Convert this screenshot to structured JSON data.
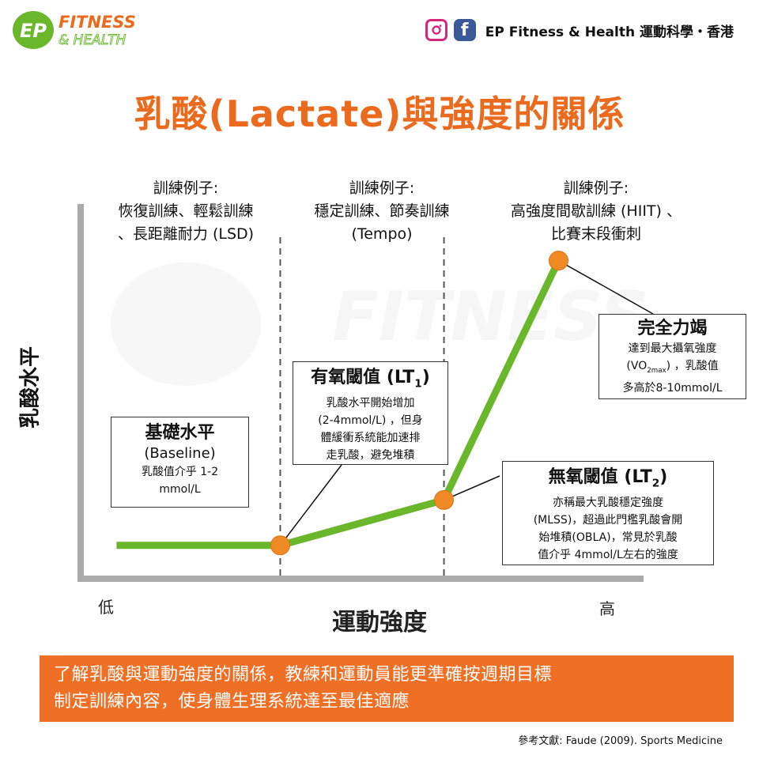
{
  "brand": {
    "logo_mark": "EP",
    "logo_line1": "FITNESS",
    "logo_line2": "& HEALTH",
    "instagram_icon": "instagram-icon",
    "facebook_icon": "facebook-icon",
    "social_text": "EP Fitness & Health 運動科學・香港",
    "accent_color": "#ea6a1e",
    "green": "#6ab72c"
  },
  "title": "乳酸(Lactate)與強度的關係",
  "zones": [
    {
      "line1": "訓練例子:",
      "line2": "恢復訓練、輕鬆訓練",
      "line3": "、長距離耐力 (LSD)"
    },
    {
      "line1": "訓練例子:",
      "line2": "穩定訓練、節奏訓練",
      "line3": "(Tempo)"
    },
    {
      "line1": "訓練例子:",
      "line2": "高強度間歇訓練 (HIIT) 、",
      "line3": "比賽末段衝刺"
    }
  ],
  "boxes": {
    "baseline": {
      "title": "基礎水平",
      "subtitle": "(Baseline)",
      "desc1": "乳酸值介乎 1-2",
      "desc2": "mmol/L"
    },
    "lt1": {
      "title_main": "有氧閾值 (LT",
      "title_sub": "1",
      "title_end": ")",
      "desc1": "乳酸水平開始增加",
      "desc2": "(2-4mmol/L) ，但身",
      "desc3": "體緩衝系統能加速排",
      "desc4": "走乳酸，避免堆積"
    },
    "lt2": {
      "title_main": "無氧閾值 (LT",
      "title_sub": "2",
      "title_end": ")",
      "desc1": "亦稱最大乳酸穩定強度",
      "desc2": "(MLSS)，超過此門檻乳酸會開",
      "desc3": "始堆積(OBLA)，常見於乳酸",
      "desc4": "值介乎 4mmol/L左右的強度"
    },
    "exhaustion": {
      "title": "完全力竭",
      "desc1": "達到最大攝氧強度",
      "desc2_main": "(VO",
      "desc2_sub": "2max",
      "desc2_end": ") ，乳酸值",
      "desc3": "多高於8-10mmol/L"
    }
  },
  "axes": {
    "ylabel": "乳酸水平",
    "xlabel": "運動強度",
    "low": "低",
    "high": "高"
  },
  "chart_data": {
    "type": "line",
    "series": [
      {
        "x": [
          0,
          1,
          2,
          2.7
        ],
        "y": [
          1.2,
          1.2,
          3.0,
          12.5
        ]
      }
    ],
    "key_points": [
      1,
      2,
      2.7
    ],
    "boundaries": [
      1,
      2
    ],
    "xlim": [
      -0.2,
      3.2
    ],
    "ylim": [
      0,
      15
    ]
  },
  "banner": {
    "line1": "了解乳酸與運動強度的關係，教練和運動員能更準確按週期目標",
    "line2": "制定訓練內容，使身體生理系統達至最佳適應"
  },
  "reference": "參考文獻: Faude (2009). Sports Medicine"
}
